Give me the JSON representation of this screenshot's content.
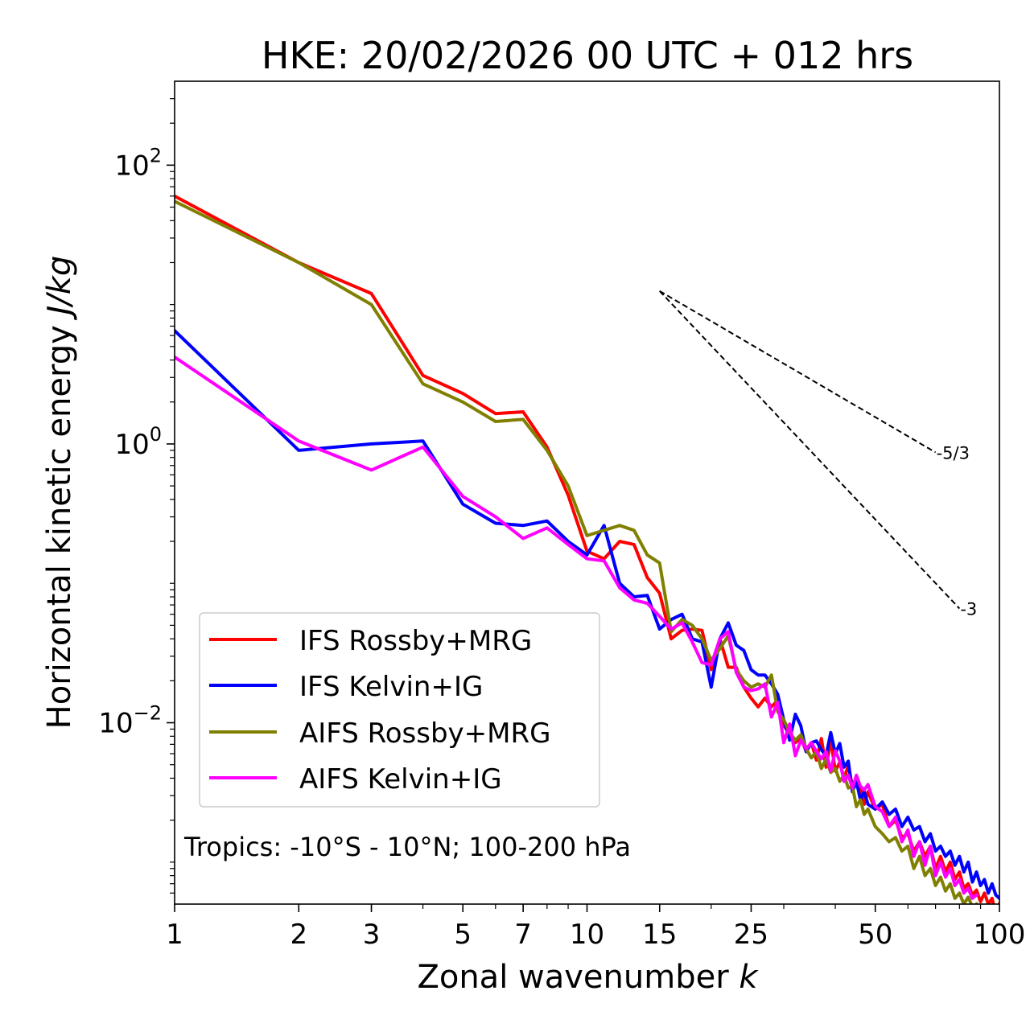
{
  "chart_data": {
    "type": "line",
    "title": "HKE: 20/02/2026 00 UTC + 012 hrs",
    "xlabel": "Zonal wavenumber",
    "xlabel_var": "k",
    "ylabel": "Horizontal kinetic energy",
    "ylabel_units": "J/kg",
    "xscale": "log",
    "yscale": "log",
    "xlim": [
      1,
      100
    ],
    "ylim": [
      0.0005,
      400
    ],
    "x_ticks": [
      {
        "value": 1,
        "label": "1"
      },
      {
        "value": 2,
        "label": "2"
      },
      {
        "value": 3,
        "label": "3"
      },
      {
        "value": 5,
        "label": "5"
      },
      {
        "value": 7,
        "label": "7"
      },
      {
        "value": 10,
        "label": "10"
      },
      {
        "value": 15,
        "label": "15"
      },
      {
        "value": 25,
        "label": "25"
      },
      {
        "value": 50,
        "label": "50"
      },
      {
        "value": 100,
        "label": "100"
      }
    ],
    "y_ticks": [
      {
        "value": 100,
        "base": "10",
        "exp": "2"
      },
      {
        "value": 1,
        "base": "10",
        "exp": "0"
      },
      {
        "value": 0.01,
        "base": "10",
        "exp": "−2"
      }
    ],
    "annotation": "Tropics: -10°S - 10°N; 100-200 hPa",
    "legend_position": "lower-left",
    "reference_slopes": [
      {
        "label": "-5/3",
        "x": [
          15,
          70
        ],
        "y": [
          12.5,
          0.87
        ]
      },
      {
        "label": "-3",
        "x": [
          15,
          80
        ],
        "y": [
          12.5,
          0.066
        ]
      }
    ],
    "series": [
      {
        "name": "IFS Rossby+MRG",
        "color": "#ff0000",
        "points": [
          [
            1,
            60
          ],
          [
            2,
            20
          ],
          [
            3,
            12
          ],
          [
            4,
            3.1
          ],
          [
            5,
            2.3
          ],
          [
            6,
            1.65
          ],
          [
            7,
            1.7
          ],
          [
            8,
            0.95
          ],
          [
            9,
            0.43
          ],
          [
            10,
            0.17
          ],
          [
            11,
            0.15
          ],
          [
            12,
            0.2
          ],
          [
            13,
            0.19
          ],
          [
            14,
            0.11
          ],
          [
            15,
            0.085
          ],
          [
            16,
            0.04
          ],
          [
            17,
            0.046
          ],
          [
            18,
            0.047
          ],
          [
            19,
            0.046
          ],
          [
            20,
            0.024
          ],
          [
            21,
            0.04
          ],
          [
            22,
            0.025
          ],
          [
            23,
            0.025
          ],
          [
            24,
            0.018
          ],
          [
            25,
            0.015
          ],
          [
            26,
            0.013
          ],
          [
            27,
            0.015
          ],
          [
            28,
            0.013
          ],
          [
            29,
            0.0145
          ],
          [
            30,
            0.0095
          ],
          [
            31,
            0.0085
          ],
          [
            32,
            0.0072
          ],
          [
            33,
            0.0078
          ],
          [
            34,
            0.0062
          ],
          [
            35,
            0.0072
          ],
          [
            36,
            0.0054
          ],
          [
            37,
            0.0077
          ],
          [
            38,
            0.0048
          ],
          [
            39,
            0.0075
          ],
          [
            40,
            0.0045
          ],
          [
            41,
            0.0052
          ],
          [
            42,
            0.004
          ],
          [
            43,
            0.0049
          ],
          [
            44,
            0.0035
          ],
          [
            45,
            0.0036
          ],
          [
            46,
            0.0034
          ],
          [
            47,
            0.0026
          ],
          [
            48,
            0.0032
          ],
          [
            50,
            0.0024
          ],
          [
            52,
            0.0026
          ],
          [
            54,
            0.0018
          ],
          [
            56,
            0.002
          ],
          [
            58,
            0.0015
          ],
          [
            60,
            0.0016
          ],
          [
            62,
            0.0012
          ],
          [
            64,
            0.0014
          ],
          [
            66,
            0.0011
          ],
          [
            68,
            0.0013
          ],
          [
            70,
            0.0009
          ],
          [
            72,
            0.0011
          ],
          [
            74,
            0.00085
          ],
          [
            76,
            0.001
          ],
          [
            78,
            0.00075
          ],
          [
            80,
            0.00085
          ],
          [
            82,
            0.00065
          ],
          [
            84,
            0.0007
          ],
          [
            86,
            0.00058
          ],
          [
            88,
            0.00063
          ],
          [
            90,
            0.00052
          ],
          [
            92,
            0.0006
          ],
          [
            94,
            0.0005
          ],
          [
            96,
            0.00055
          ],
          [
            98,
            0.00042
          ],
          [
            100,
            0.0005
          ]
        ]
      },
      {
        "name": "IFS Kelvin+IG",
        "color": "#0000ff",
        "points": [
          [
            1,
            6.5
          ],
          [
            2,
            0.9
          ],
          [
            3,
            1.0
          ],
          [
            4,
            1.05
          ],
          [
            5,
            0.37
          ],
          [
            6,
            0.27
          ],
          [
            7,
            0.26
          ],
          [
            8,
            0.28
          ],
          [
            9,
            0.2
          ],
          [
            10,
            0.16
          ],
          [
            11,
            0.26
          ],
          [
            12,
            0.1
          ],
          [
            13,
            0.08
          ],
          [
            14,
            0.082
          ],
          [
            15,
            0.047
          ],
          [
            16,
            0.055
          ],
          [
            17,
            0.06
          ],
          [
            18,
            0.04
          ],
          [
            19,
            0.038
          ],
          [
            20,
            0.018
          ],
          [
            21,
            0.04
          ],
          [
            22,
            0.052
          ],
          [
            23,
            0.036
          ],
          [
            24,
            0.033
          ],
          [
            25,
            0.024
          ],
          [
            26,
            0.022
          ],
          [
            27,
            0.022
          ],
          [
            28,
            0.019
          ],
          [
            29,
            0.016
          ],
          [
            30,
            0.0105
          ],
          [
            31,
            0.0075
          ],
          [
            32,
            0.0115
          ],
          [
            33,
            0.0095
          ],
          [
            34,
            0.0062
          ],
          [
            35,
            0.0072
          ],
          [
            36,
            0.0074
          ],
          [
            37,
            0.0064
          ],
          [
            38,
            0.0058
          ],
          [
            39,
            0.0085
          ],
          [
            40,
            0.006
          ],
          [
            41,
            0.0071
          ],
          [
            42,
            0.0048
          ],
          [
            43,
            0.0053
          ],
          [
            44,
            0.0032
          ],
          [
            45,
            0.0038
          ],
          [
            46,
            0.0028
          ],
          [
            47,
            0.0032
          ],
          [
            48,
            0.0026
          ],
          [
            50,
            0.0024
          ],
          [
            52,
            0.0027
          ],
          [
            54,
            0.0022
          ],
          [
            56,
            0.0024
          ],
          [
            58,
            0.0018
          ],
          [
            60,
            0.0021
          ],
          [
            62,
            0.0017
          ],
          [
            64,
            0.0018
          ],
          [
            66,
            0.0014
          ],
          [
            68,
            0.0016
          ],
          [
            70,
            0.0012
          ],
          [
            72,
            0.0013
          ],
          [
            74,
            0.0011
          ],
          [
            76,
            0.0012
          ],
          [
            78,
            0.00095
          ],
          [
            80,
            0.0011
          ],
          [
            82,
            0.00085
          ],
          [
            84,
            0.001
          ],
          [
            86,
            0.00072
          ],
          [
            88,
            0.00085
          ],
          [
            90,
            0.00068
          ],
          [
            92,
            0.00075
          ],
          [
            94,
            0.0006
          ],
          [
            96,
            0.0007
          ],
          [
            98,
            0.00058
          ],
          [
            100,
            0.00055
          ]
        ]
      },
      {
        "name": "AIFS Rossby+MRG",
        "color": "#808000",
        "points": [
          [
            1,
            55
          ],
          [
            2,
            20
          ],
          [
            3,
            10
          ],
          [
            4,
            2.7
          ],
          [
            5,
            2.0
          ],
          [
            6,
            1.45
          ],
          [
            7,
            1.5
          ],
          [
            8,
            0.9
          ],
          [
            9,
            0.5
          ],
          [
            10,
            0.22
          ],
          [
            11,
            0.24
          ],
          [
            12,
            0.26
          ],
          [
            13,
            0.24
          ],
          [
            14,
            0.16
          ],
          [
            15,
            0.14
          ],
          [
            16,
            0.045
          ],
          [
            17,
            0.055
          ],
          [
            18,
            0.05
          ],
          [
            19,
            0.04
          ],
          [
            20,
            0.028
          ],
          [
            21,
            0.034
          ],
          [
            22,
            0.042
          ],
          [
            23,
            0.024
          ],
          [
            24,
            0.02
          ],
          [
            25,
            0.018
          ],
          [
            26,
            0.019
          ],
          [
            27,
            0.018
          ],
          [
            28,
            0.022
          ],
          [
            29,
            0.012
          ],
          [
            30,
            0.0105
          ],
          [
            31,
            0.0085
          ],
          [
            32,
            0.0075
          ],
          [
            33,
            0.0082
          ],
          [
            34,
            0.0065
          ],
          [
            35,
            0.0056
          ],
          [
            36,
            0.0062
          ],
          [
            37,
            0.0047
          ],
          [
            38,
            0.0055
          ],
          [
            39,
            0.0044
          ],
          [
            40,
            0.0047
          ],
          [
            41,
            0.0038
          ],
          [
            42,
            0.0042
          ],
          [
            43,
            0.0034
          ],
          [
            44,
            0.0035
          ],
          [
            45,
            0.0025
          ],
          [
            46,
            0.0028
          ],
          [
            47,
            0.0022
          ],
          [
            48,
            0.0024
          ],
          [
            50,
            0.0018
          ],
          [
            52,
            0.0016
          ],
          [
            54,
            0.0014
          ],
          [
            56,
            0.0015
          ],
          [
            58,
            0.0012
          ],
          [
            60,
            0.0013
          ],
          [
            62,
            0.0009
          ],
          [
            64,
            0.0011
          ],
          [
            66,
            0.0008
          ],
          [
            68,
            0.0009
          ],
          [
            70,
            0.00068
          ],
          [
            72,
            0.00078
          ],
          [
            74,
            0.00062
          ],
          [
            76,
            0.0007
          ],
          [
            78,
            0.00055
          ],
          [
            80,
            0.0006
          ],
          [
            82,
            0.0005
          ],
          [
            84,
            0.00056
          ],
          [
            86,
            0.00048
          ],
          [
            88,
            0.0005
          ]
        ]
      },
      {
        "name": "AIFS Kelvin+IG",
        "color": "#ff00ff",
        "points": [
          [
            1,
            4.2
          ],
          [
            2,
            1.05
          ],
          [
            3,
            0.65
          ],
          [
            4,
            0.95
          ],
          [
            5,
            0.42
          ],
          [
            6,
            0.3
          ],
          [
            7,
            0.21
          ],
          [
            8,
            0.25
          ],
          [
            9,
            0.19
          ],
          [
            10,
            0.15
          ],
          [
            11,
            0.145
          ],
          [
            12,
            0.093
          ],
          [
            13,
            0.076
          ],
          [
            14,
            0.072
          ],
          [
            15,
            0.058
          ],
          [
            16,
            0.047
          ],
          [
            17,
            0.052
          ],
          [
            18,
            0.038
          ],
          [
            19,
            0.027
          ],
          [
            20,
            0.026
          ],
          [
            21,
            0.04
          ],
          [
            22,
            0.045
          ],
          [
            23,
            0.023
          ],
          [
            24,
            0.018
          ],
          [
            25,
            0.017
          ],
          [
            26,
            0.0175
          ],
          [
            27,
            0.019
          ],
          [
            28,
            0.011
          ],
          [
            29,
            0.014
          ],
          [
            30,
            0.0072
          ],
          [
            31,
            0.0098
          ],
          [
            32,
            0.0058
          ],
          [
            33,
            0.0075
          ],
          [
            34,
            0.0065
          ],
          [
            35,
            0.0072
          ],
          [
            36,
            0.0062
          ],
          [
            37,
            0.0055
          ],
          [
            38,
            0.0062
          ],
          [
            39,
            0.0045
          ],
          [
            40,
            0.0063
          ],
          [
            41,
            0.0053
          ],
          [
            42,
            0.0038
          ],
          [
            43,
            0.0042
          ],
          [
            44,
            0.0034
          ],
          [
            45,
            0.0042
          ],
          [
            46,
            0.0035
          ],
          [
            47,
            0.0033
          ],
          [
            48,
            0.0036
          ],
          [
            50,
            0.0025
          ],
          [
            52,
            0.0023
          ],
          [
            54,
            0.0018
          ],
          [
            56,
            0.0021
          ],
          [
            58,
            0.0014
          ],
          [
            60,
            0.0017
          ],
          [
            62,
            0.0011
          ],
          [
            64,
            0.0014
          ],
          [
            66,
            0.00095
          ],
          [
            68,
            0.0013
          ],
          [
            70,
            0.0008
          ],
          [
            72,
            0.001
          ],
          [
            74,
            0.00078
          ],
          [
            76,
            0.0009
          ],
          [
            78,
            0.00068
          ],
          [
            80,
            0.00075
          ],
          [
            82,
            0.0006
          ],
          [
            84,
            0.00065
          ],
          [
            86,
            0.00055
          ],
          [
            88,
            0.00058
          ]
        ]
      }
    ]
  }
}
